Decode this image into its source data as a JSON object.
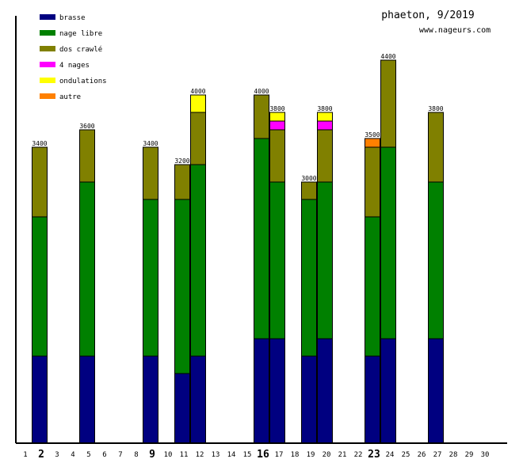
{
  "chart_data": {
    "type": "bar",
    "stacked": true,
    "title": "phaeton, 9/2019",
    "subtitle": "www.nageurs.com",
    "xlabel": "",
    "ylabel": "",
    "ylim": [
      0,
      4900
    ],
    "grid": false,
    "legend_position": "top-left",
    "categories": [
      "1",
      "2",
      "3",
      "4",
      "5",
      "6",
      "7",
      "8",
      "9",
      "10",
      "11",
      "12",
      "13",
      "14",
      "15",
      "16",
      "17",
      "18",
      "19",
      "20",
      "21",
      "22",
      "23",
      "24",
      "25",
      "26",
      "27",
      "28",
      "29",
      "30"
    ],
    "emphasized_categories": [
      "2",
      "9",
      "16",
      "23"
    ],
    "series": [
      {
        "name": "brasse",
        "color": "#000080",
        "values": [
          0,
          1000,
          0,
          0,
          1000,
          0,
          0,
          0,
          1000,
          0,
          800,
          1000,
          0,
          0,
          0,
          1200,
          1200,
          0,
          1000,
          1200,
          0,
          0,
          1000,
          1200,
          0,
          0,
          1200,
          0,
          0,
          0
        ]
      },
      {
        "name": "nage libre",
        "color": "#008000",
        "values": [
          0,
          1600,
          0,
          0,
          2000,
          0,
          0,
          0,
          1800,
          0,
          2000,
          2200,
          0,
          0,
          0,
          2300,
          1800,
          0,
          1800,
          1800,
          0,
          0,
          1600,
          2200,
          0,
          0,
          1800,
          0,
          0,
          0
        ]
      },
      {
        "name": "dos crawlé",
        "color": "#808000",
        "values": [
          0,
          800,
          0,
          0,
          600,
          0,
          0,
          0,
          600,
          0,
          400,
          600,
          0,
          0,
          0,
          500,
          600,
          0,
          200,
          600,
          0,
          0,
          800,
          1000,
          0,
          0,
          800,
          0,
          0,
          0
        ]
      },
      {
        "name": "4 nages",
        "color": "#ff00ff",
        "values": [
          0,
          0,
          0,
          0,
          0,
          0,
          0,
          0,
          0,
          0,
          0,
          0,
          0,
          0,
          0,
          0,
          100,
          0,
          0,
          100,
          0,
          0,
          0,
          0,
          0,
          0,
          0,
          0,
          0,
          0
        ]
      },
      {
        "name": "ondulations",
        "color": "#ffff00",
        "values": [
          0,
          0,
          0,
          0,
          0,
          0,
          0,
          0,
          0,
          0,
          0,
          200,
          0,
          0,
          0,
          0,
          100,
          0,
          0,
          100,
          0,
          0,
          0,
          0,
          0,
          0,
          0,
          0,
          0,
          0
        ]
      },
      {
        "name": "autre",
        "color": "#ff8000",
        "values": [
          0,
          0,
          0,
          0,
          0,
          0,
          0,
          0,
          0,
          0,
          0,
          0,
          0,
          0,
          0,
          0,
          0,
          0,
          0,
          0,
          0,
          0,
          100,
          0,
          0,
          0,
          0,
          0,
          0,
          0
        ]
      }
    ],
    "totals": [
      null,
      3400,
      null,
      null,
      3600,
      null,
      null,
      null,
      3400,
      null,
      3200,
      4000,
      null,
      null,
      null,
      4000,
      3800,
      null,
      3000,
      3800,
      null,
      null,
      3500,
      4400,
      null,
      null,
      3800,
      null,
      null,
      null
    ]
  }
}
